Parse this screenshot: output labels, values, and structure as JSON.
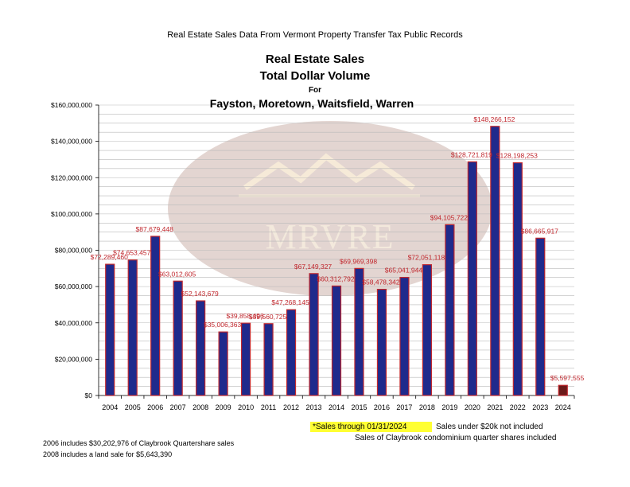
{
  "header": {
    "source_title": "Real Estate Sales Data From Vermont Property Transfer Tax Public Records",
    "main_title": "Real Estate Sales",
    "sub_title": "Total Dollar Volume",
    "for_label": "For",
    "towns": "Fayston, Moretown, Waitsfield, Warren"
  },
  "watermark": {
    "text": "MRVRE",
    "icon": "mountain-logo-icon"
  },
  "colors": {
    "bar_fill": "#1f2a8c",
    "bar_edge": "#c0272d",
    "label": "#c0272d",
    "last_bar": "#6b1a1a",
    "watermark": "#ddd0cc",
    "highlight": "#ffff33"
  },
  "chart_data": {
    "type": "bar",
    "title": "Real Estate Sales Total Dollar Volume",
    "xlabel": "",
    "ylabel": "",
    "ylim": [
      0,
      160000000
    ],
    "grid": true,
    "categories": [
      "2004",
      "2005",
      "2006",
      "2007",
      "2008",
      "2009",
      "2010",
      "2011",
      "2012",
      "2013",
      "2014",
      "2015",
      "2016",
      "2017",
      "2018",
      "2019",
      "2020",
      "2021",
      "2022",
      "2023",
      "2024"
    ],
    "values": [
      72289460,
      74653457,
      87679448,
      63012605,
      52143679,
      35006363,
      39858496,
      39560725,
      47268145,
      67149327,
      60312792,
      69969398,
      58478342,
      65041944,
      72051118,
      94105722,
      128721819,
      148266152,
      128198253,
      86665917,
      5597555
    ],
    "data_labels": [
      "$72,289,460",
      "$74,653,457",
      "$87,679,448",
      "$63,012,605",
      "$52,143,679",
      "$35,006,363",
      "$39,858,496",
      "$39,560,725",
      "$47,268,145",
      "$67,149,327",
      "$60,312,792",
      "$69,969,398",
      "$58,478,342",
      "$65,041,944",
      "$72,051,118",
      "$94,105,722",
      "$128,721,819",
      "$148,266,152",
      "$128,198,253",
      "$86,665,917",
      "$5,597,555"
    ],
    "y_tick_labels": [
      "$0",
      "$20,000,000",
      "$40,000,000",
      "$60,000,000",
      "$80,000,000",
      "$100,000,000",
      "$120,000,000",
      "$140,000,000",
      "$160,000,000"
    ],
    "y_tick_values": [
      0,
      20000000,
      40000000,
      60000000,
      80000000,
      100000000,
      120000000,
      140000000,
      160000000
    ]
  },
  "notes": {
    "sales_through": "*Sales through 01/31/2024",
    "under_20k": "Sales under $20k not included",
    "claybrook": "Sales of Claybrook condominium quarter shares included",
    "footnote_2006": "2006 includes $30,202,976 of Claybrook Quartershare sales",
    "footnote_2008": "2008 includes a land sale for $5,643,390"
  }
}
